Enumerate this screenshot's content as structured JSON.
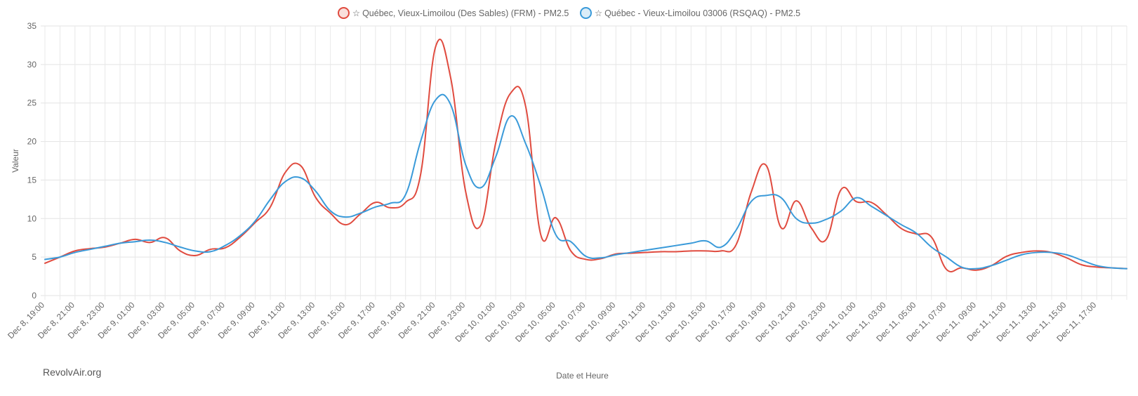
{
  "chart_data": {
    "type": "line",
    "title": "",
    "xlabel": "Date et Heure",
    "ylabel": "Valeur",
    "ylim": [
      0,
      35
    ],
    "yticks": [
      0,
      5,
      10,
      15,
      20,
      25,
      30,
      35
    ],
    "grid": true,
    "legend_position": "top-center",
    "tick_labels": [
      "Dec 8, 19:00",
      "Dec 8, 21:00",
      "Dec 8, 23:00",
      "Dec 9, 01:00",
      "Dec 9, 03:00",
      "Dec 9, 05:00",
      "Dec 9, 07:00",
      "Dec 9, 09:00",
      "Dec 9, 11:00",
      "Dec 9, 13:00",
      "Dec 9, 15:00",
      "Dec 9, 17:00",
      "Dec 9, 19:00",
      "Dec 9, 21:00",
      "Dec 9, 23:00",
      "Dec 10, 01:00",
      "Dec 10, 03:00",
      "Dec 10, 05:00",
      "Dec 10, 07:00",
      "Dec 10, 09:00",
      "Dec 10, 11:00",
      "Dec 10, 13:00",
      "Dec 10, 15:00",
      "Dec 10, 17:00",
      "Dec 10, 19:00",
      "Dec 10, 21:00",
      "Dec 10, 23:00",
      "Dec 11, 01:00",
      "Dec 11, 03:00",
      "Dec 11, 05:00",
      "Dec 11, 07:00",
      "Dec 11, 09:00",
      "Dec 11, 11:00",
      "Dec 11, 13:00",
      "Dec 11, 15:00",
      "Dec 11, 17:00"
    ],
    "hours_per_point": 1,
    "series": [
      {
        "name": "Québec, Vieux-Limoilou (Des Sables) (FRM) - PM2.5",
        "color": "#e04b3f",
        "values": [
          4.2,
          5.0,
          5.8,
          6.1,
          6.3,
          6.8,
          7.3,
          6.9,
          7.5,
          5.8,
          5.2,
          6.0,
          6.2,
          7.6,
          9.5,
          11.5,
          16.0,
          16.9,
          12.8,
          10.7,
          9.2,
          10.6,
          12.1,
          11.4,
          12.1,
          15.7,
          32.3,
          28.3,
          13.5,
          9.1,
          19.8,
          26.3,
          24.5,
          7.9,
          10.1,
          5.8,
          4.7,
          4.8,
          5.4,
          5.5,
          5.6,
          5.7,
          5.7,
          5.8,
          5.8,
          5.8,
          6.6,
          13.4,
          16.9,
          8.8,
          12.3,
          8.8,
          7.3,
          13.8,
          12.2,
          12.1,
          10.5,
          8.7,
          8.0,
          7.6,
          3.4,
          3.6,
          3.3,
          3.9,
          5.1,
          5.6,
          5.8,
          5.6,
          4.9,
          4.0,
          3.7,
          3.6,
          3.5
        ]
      },
      {
        "name": "Québec - Vieux-Limoilou 03006 (RSQAQ) - PM2.5",
        "color": "#3a9ad9",
        "values": [
          4.7,
          5.0,
          5.6,
          6.0,
          6.4,
          6.8,
          7.0,
          7.2,
          6.9,
          6.3,
          5.8,
          5.7,
          6.5,
          7.8,
          9.7,
          12.5,
          14.8,
          15.3,
          13.6,
          11.0,
          10.2,
          10.7,
          11.5,
          12.0,
          13.1,
          20.0,
          25.4,
          24.8,
          17.0,
          14.0,
          18.0,
          23.3,
          19.7,
          14.2,
          7.9,
          7.0,
          5.1,
          4.9,
          5.3,
          5.6,
          5.9,
          6.2,
          6.5,
          6.8,
          7.1,
          6.3,
          8.5,
          12.2,
          13.0,
          12.7,
          10.0,
          9.4,
          9.9,
          11.0,
          12.7,
          11.6,
          10.4,
          9.2,
          8.1,
          6.3,
          5.0,
          3.7,
          3.5,
          3.9,
          4.6,
          5.3,
          5.6,
          5.6,
          5.3,
          4.6,
          3.9,
          3.6,
          3.5
        ]
      }
    ]
  },
  "credit": "RevolvAir.org"
}
